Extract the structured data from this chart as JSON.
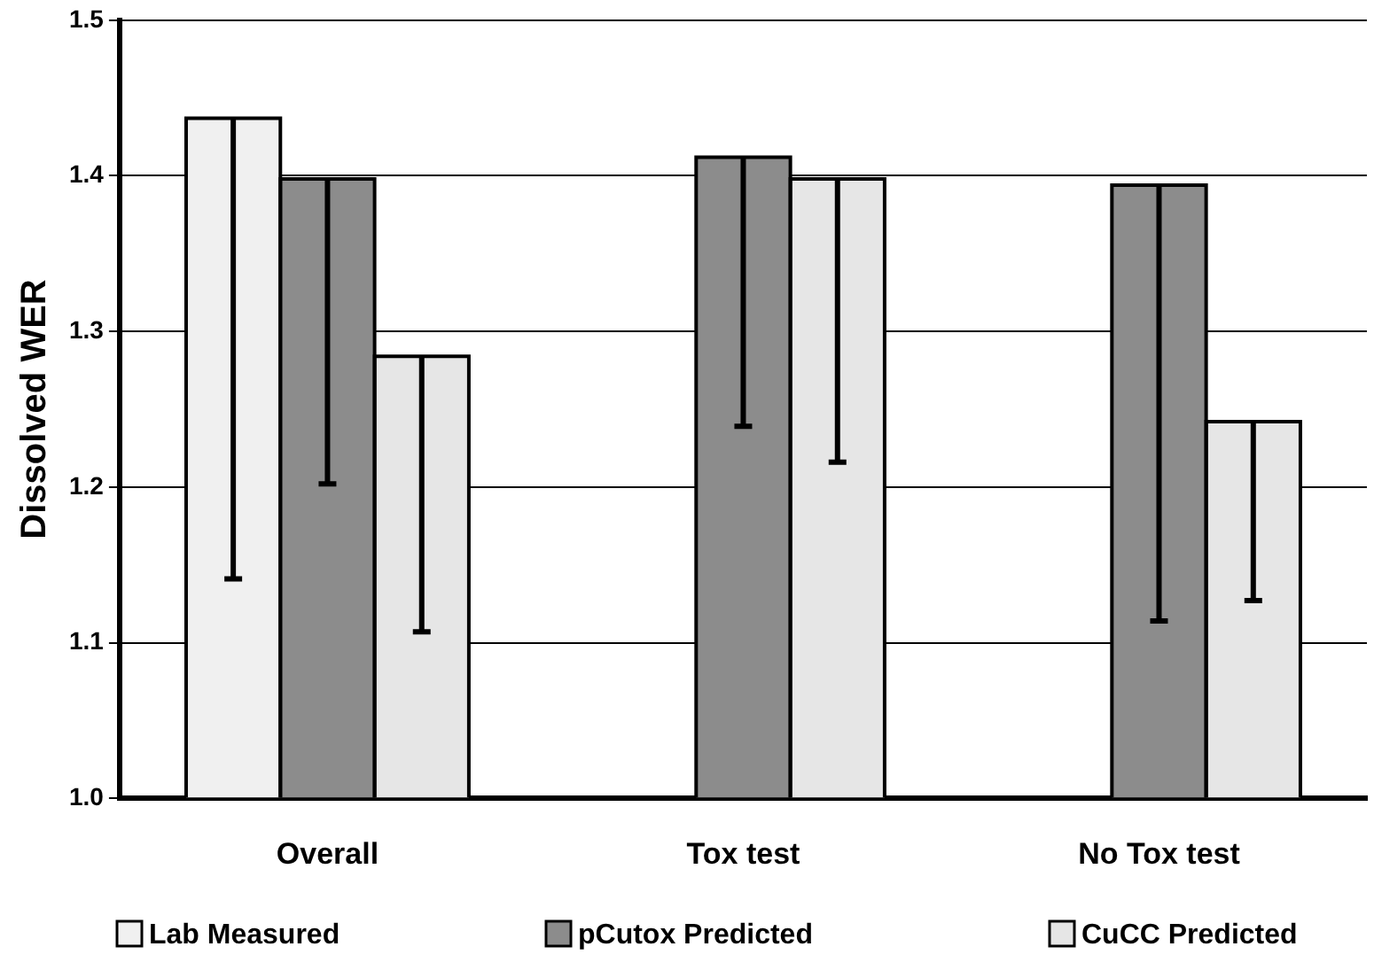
{
  "chart_data": {
    "type": "bar",
    "ylabel": "Dissolved WER",
    "categories": [
      "Overall",
      "Tox test",
      "No Tox test"
    ],
    "series": [
      {
        "name": "Lab Measured",
        "color": "#f0f0f0",
        "values": [
          1.437,
          null,
          null
        ],
        "errors": [
          [
            1.141,
            1.437
          ],
          null,
          null
        ]
      },
      {
        "name": "pCutox Predicted",
        "color": "#8c8c8c",
        "values": [
          1.398,
          1.412,
          1.394
        ],
        "errors": [
          [
            1.202,
            1.398
          ],
          [
            1.239,
            1.412
          ],
          [
            1.114,
            1.394
          ]
        ]
      },
      {
        "name": "CuCC Predicted",
        "color": "#e6e6e6",
        "values": [
          1.284,
          1.398,
          1.242
        ],
        "errors": [
          [
            1.107,
            1.284
          ],
          [
            1.216,
            1.398
          ],
          [
            1.127,
            1.242
          ]
        ]
      }
    ],
    "ylim": [
      1,
      1.5
    ],
    "yticks": [
      {
        "value": 1,
        "label": "1.0"
      },
      1.1,
      1.2,
      1.3,
      1.4,
      {
        "value": 1.5,
        "label": "1.5"
      }
    ],
    "grid": "y",
    "legend": "bottom"
  }
}
